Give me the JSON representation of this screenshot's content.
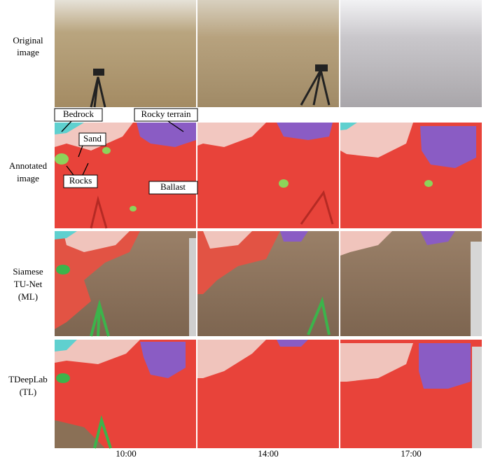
{
  "row_labels": [
    [
      "Original",
      "image"
    ],
    [
      "Annotated",
      "image"
    ],
    [
      "Siamese",
      "TU-Net",
      "(ML)"
    ],
    [
      "TDeepLab",
      "(TL)"
    ]
  ],
  "column_labels": [
    "10:00",
    "14:00",
    "17:00"
  ],
  "annotations": [
    "Bedrock",
    "Rocky terrain",
    "Sand",
    "Rocks",
    "Ballast"
  ]
}
